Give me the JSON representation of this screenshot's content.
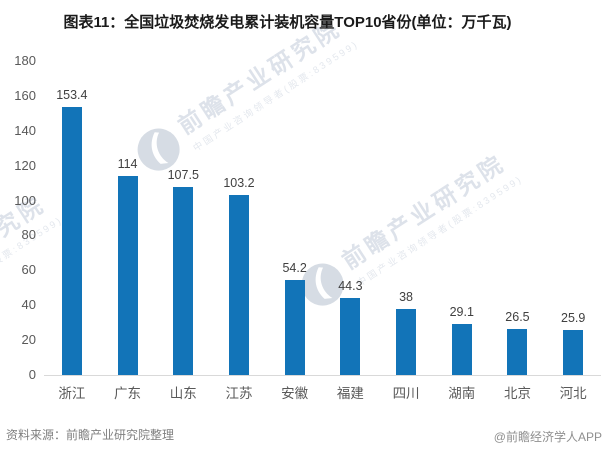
{
  "chart_data": {
    "type": "bar",
    "title": "图表11：全国垃圾焚烧发电累计装机容量TOP10省份(单位：万千瓦)",
    "categories": [
      "浙江",
      "广东",
      "山东",
      "江苏",
      "安徽",
      "福建",
      "四川",
      "湖南",
      "北京",
      "河北"
    ],
    "values": [
      153.4,
      114,
      107.5,
      103.2,
      54.2,
      44.3,
      38,
      29.1,
      26.5,
      25.9
    ],
    "xlabel": "",
    "ylabel": "",
    "unit": "万千瓦",
    "ylim": [
      0,
      180
    ],
    "yticks": [
      0,
      20,
      40,
      60,
      80,
      100,
      120,
      140,
      160,
      180
    ],
    "grid": false,
    "legend": "none",
    "bar_color": "#1274b8",
    "axis_color": "#d9d9d9",
    "tick_label_color": "#595959",
    "value_label_color": "#404040"
  },
  "footer": {
    "source": "资料来源：前瞻产业研究院整理",
    "credit": "@前瞻经济学人APP"
  },
  "watermark": {
    "brand": "前瞻产业研究院",
    "tagline": "中国产业咨询领导者(股票:839599)",
    "logo_icon": "qianzhan-logo-icon",
    "color": "#dde2ea"
  }
}
